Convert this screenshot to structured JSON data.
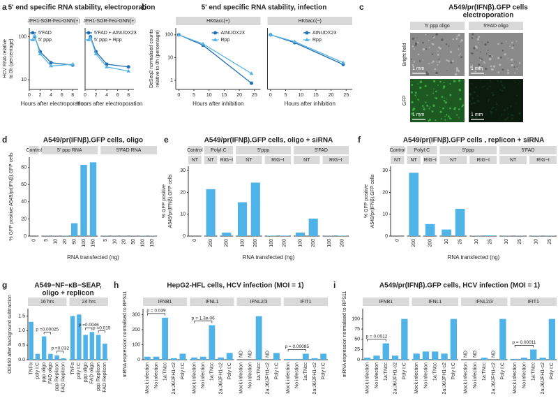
{
  "chart_data": [
    {
      "label": "a",
      "type": "line",
      "title": "5' end specific RNA stability, electroporation",
      "ylabel": [
        "HCV RNA relative",
        "to 0h (percentage)"
      ],
      "xlabel": "Hours after electroporation",
      "log_y": true,
      "ylim": [
        6,
        160
      ],
      "yticks": [
        10,
        100
      ],
      "xlim": [
        0,
        9
      ],
      "xticks": [
        0,
        2,
        4,
        6,
        8
      ],
      "facets": [
        {
          "title": "JFH1-SGR-Feo-GNN(+)",
          "x": [
            1,
            2,
            4,
            8
          ],
          "series": [
            {
              "name": "5'FAD",
              "color": "#1f6fb2",
              "values": [
                100,
                45,
                25,
                22
              ]
            },
            {
              "name": "5' ppp",
              "color": "#5ab4e5",
              "values": [
                105,
                40,
                21,
                23
              ]
            }
          ]
        },
        {
          "title": "JFH1-SGR-Feo-GNN(+)",
          "x": [
            1,
            2,
            4,
            8
          ],
          "series": [
            {
              "name": "5'FAD + AtNUDX23",
              "color": "#1f6fb2",
              "values": [
                100,
                45,
                23,
                20
              ]
            },
            {
              "name": "5' ppp + Rpp",
              "color": "#5ab4e5",
              "values": [
                95,
                40,
                20,
                16
              ]
            }
          ]
        }
      ]
    },
    {
      "label": "b",
      "type": "line",
      "title": "5' end specific RNA stability, infection",
      "ylabel": [
        "DeSeq2 normalised counts",
        "relative to 0h (percentage)"
      ],
      "xlabel": "Hours after inhibition",
      "log_y": true,
      "ylim": [
        0.4,
        200
      ],
      "yticks": [
        1,
        10,
        100
      ],
      "xlim": [
        -1,
        27
      ],
      "xticks": [
        0,
        5,
        10,
        15,
        20,
        25
      ],
      "facets": [
        {
          "title": "HK6acc(+)",
          "x": [
            0,
            8,
            24
          ],
          "series": [
            {
              "name": "AtNUDX23",
              "color": "#1f6fb2",
              "values": [
                100,
                35,
                0.75
              ]
            },
            {
              "name": "Rpp",
              "color": "#5ab4e5",
              "values": [
                100,
                40,
                2
              ]
            }
          ]
        },
        {
          "title": "HK6acc(−)",
          "x": [
            0,
            8,
            24
          ],
          "series": [
            {
              "name": "AtNUDX23",
              "color": "#1f6fb2",
              "values": [
                100,
                45,
                5
              ]
            },
            {
              "name": "Rpp",
              "color": "#5ab4e5",
              "values": [
                100,
                50,
                6
              ]
            }
          ]
        }
      ]
    },
    {
      "label": "d",
      "type": "bar",
      "title": "A549/pr(IFNβ).GFP cells, oligo",
      "ylabel": [
        "% GFP positive A549/pr(IFNβ).GFP cells"
      ],
      "xlabel": "RNA transfected (ng)",
      "color": "#4fb3e8",
      "ylim": [
        0,
        92
      ],
      "yticks": [
        0,
        20,
        40,
        60,
        80
      ],
      "groups": [
        {
          "label": "Control",
          "facets": [
            {
              "categories": [
                "0"
              ],
              "values": [
                0
              ]
            }
          ]
        },
        {
          "label": "5' ppp RNA",
          "facets": [
            {
              "categories": [
                "5",
                "10",
                "20",
                "50",
                "100",
                "150"
              ],
              "values": [
                0.2,
                0.2,
                0.3,
                15,
                83,
                86
              ]
            }
          ]
        },
        {
          "label": "5'FAD RNA",
          "facets": [
            {
              "categories": [
                "5",
                "10",
                "20",
                "50",
                "100",
                "150"
              ],
              "values": [
                0.2,
                0.2,
                0.2,
                0.2,
                0.3,
                0.3
              ]
            }
          ]
        }
      ]
    },
    {
      "label": "e",
      "type": "bar",
      "title": "A549/pr(IFNβ).GFP cells, oligo + siRNA",
      "ylabel": [
        "% GFP positive",
        "A549/pr(IFNβ).GFP cells"
      ],
      "xlabel": "RNA transfected (ng)",
      "color": "#4fb3e8",
      "ylim": [
        0,
        32
      ],
      "yticks": [
        0,
        10,
        20,
        30
      ],
      "groups": [
        {
          "label": "Control",
          "facets": [
            {
              "label": "NT",
              "categories": [
                "0"
              ],
              "values": [
                0
              ]
            }
          ]
        },
        {
          "label": "PolyI:C",
          "facets": [
            {
              "label": "NT",
              "categories": [
                "200"
              ],
              "values": [
                21.5
              ]
            },
            {
              "label": "RIG−I",
              "categories": [
                "200"
              ],
              "values": [
                1.6
              ]
            }
          ]
        },
        {
          "label": "5'ppp",
          "facets": [
            {
              "label": "NT",
              "categories": [
                "100",
                "200"
              ],
              "values": [
                15.5,
                24.5
              ]
            },
            {
              "label": "RIG−I",
              "categories": [
                "100",
                "200"
              ],
              "values": [
                0.2,
                0.2
              ]
            }
          ]
        },
        {
          "label": "5'FAD",
          "facets": [
            {
              "label": "NT",
              "categories": [
                "100",
                "200"
              ],
              "values": [
                1.6,
                8
              ]
            },
            {
              "label": "RIG−I",
              "categories": [
                "100",
                "200"
              ],
              "values": [
                0.1,
                0.2
              ]
            }
          ]
        }
      ]
    },
    {
      "label": "f",
      "type": "bar",
      "title": "A549/pr(IFNβ).GFP cells , replicon + siRNA",
      "ylabel": [
        "% GFP positive",
        "A549/pr(IFNβ).GFP cells"
      ],
      "xlabel": "RNA transfected (ng)",
      "color": "#4fb3e8",
      "ylim": [
        0,
        32
      ],
      "yticks": [
        0,
        10,
        20,
        30
      ],
      "groups": [
        {
          "label": "Control",
          "facets": [
            {
              "label": "NT",
              "categories": [
                "0"
              ],
              "values": [
                0
              ]
            }
          ]
        },
        {
          "label": "PolyI:C",
          "facets": [
            {
              "label": "NT",
              "categories": [
                "200"
              ],
              "values": [
                29
              ]
            },
            {
              "label": "RIG−I",
              "categories": [
                "200"
              ],
              "values": [
                5.5
              ]
            }
          ]
        },
        {
          "label": "5'ppp",
          "facets": [
            {
              "label": "NT",
              "categories": [
                "10",
                "25"
              ],
              "values": [
                3,
                12.5
              ]
            },
            {
              "label": "RIG−I",
              "categories": [
                "10",
                "25"
              ],
              "values": [
                0.1,
                0.3
              ]
            }
          ]
        },
        {
          "label": "5'FAD",
          "facets": [
            {
              "label": "NT",
              "categories": [
                "10",
                "25"
              ],
              "values": [
                0.1,
                0.1
              ]
            },
            {
              "label": "RIG−I",
              "categories": [
                "10",
                "25"
              ],
              "values": [
                0.1,
                0.1
              ]
            }
          ]
        }
      ]
    },
    {
      "label": "g",
      "type": "bar",
      "title": [
        "A549−NF−κB−SEAP,",
        "oligo + replicon"
      ],
      "ylabel": [
        "OD650 after background subtraction"
      ],
      "color": "#4fb3e8",
      "ylim": [
        0,
        1.75
      ],
      "yticks": [
        {
          "value": 0,
          "label": "0.0"
        },
        0.5,
        {
          "value": 1,
          "label": "1.0"
        },
        1.5
      ],
      "groups": [
        {
          "label": "16 hrs",
          "facets": [
            {
              "categories": [
                "TNFα",
                "poly I:C",
                "ppp oligo",
                "FAD oligo",
                "ppp Replicon",
                "FAD Replicon"
              ],
              "values": [
                1.3,
                0.2,
                0.8,
                0.2,
                0.15,
                0.05
              ],
              "brackets": [
                {
                  "label": "p =0.00025",
                  "span": [
                    2,
                    3
                  ]
                },
                {
                  "label": "p =0.032",
                  "span": [
                    4,
                    5
                  ]
                }
              ]
            }
          ]
        },
        {
          "label": "24 hrs",
          "facets": [
            {
              "categories": [
                "TNFα",
                "poly I:C",
                "ppp oligo",
                "FAD oligo",
                "ppp Replicon",
                "FAD Replicon"
              ],
              "values": [
                1.5,
                1.55,
                0.85,
                0.95,
                0.85,
                0.55
              ],
              "brackets": [
                {
                  "label": "p =0.0046",
                  "span": [
                    2,
                    3
                  ]
                },
                {
                  "label": "p =0.015",
                  "span": [
                    4,
                    5
                  ]
                }
              ]
            }
          ]
        }
      ]
    },
    {
      "label": "h",
      "type": "bar",
      "title": "HepG2-HFL cells, HCV infection (MOI = 1)",
      "ylabel": [
        "mRNA expression normalised to RPS11"
      ],
      "color": "#4fb3e8",
      "ylim": [
        0,
        340
      ],
      "yticks": [
        0,
        100,
        200,
        300
      ],
      "groups": [
        {
          "label": "IFNB1",
          "facets": [
            {
              "categories": [
                "Mock infection",
                "No infection",
                "1a:TNcc",
                "2a:J6/JFH1-c2",
                "Poly I:C"
              ],
              "values": [
                20,
                20,
                280,
                10,
                40
              ],
              "brackets": [
                {
                  "label": "p = 0.039",
                  "span": [
                    0,
                    2
                  ]
                }
              ]
            }
          ]
        },
        {
          "label": "IFNL1",
          "facets": [
            {
              "categories": [
                "Mock infection",
                "No infection",
                "1a:TNcc",
                "2a:J6/JFH1-c2",
                "Poly I:C"
              ],
              "values": [
                15,
                20,
                230,
                15,
                45
              ],
              "brackets": [
                {
                  "label": "p = 1.3e-06",
                  "span": [
                    0,
                    2
                  ]
                }
              ]
            }
          ]
        },
        {
          "label": "IFNL2/3",
          "facets": [
            {
              "categories": [
                "Mock infection",
                "No infection",
                "1a:TNcc",
                "2a:J6/JFH1-c2",
                "Poly I:C"
              ],
              "values": [
                null,
                null,
                290,
                null,
                45
              ],
              "value_labels": [
                "ND",
                "ND",
                null,
                "ND",
                null
              ]
            }
          ]
        },
        {
          "label": "IFIT1",
          "facets": [
            {
              "categories": [
                "Mock infection",
                "No infection",
                "1a:TNcc",
                "2a:J6/JFH1-c2",
                "Poly I:C"
              ],
              "values": [
                5,
                5,
                40,
                10,
                40
              ],
              "brackets": [
                {
                  "label": "p = 0.00085",
                  "span": [
                    0,
                    2
                  ]
                }
              ]
            }
          ]
        }
      ]
    },
    {
      "label": "i",
      "type": "bar",
      "title": "A549/pr(IFNβ).GFP cells, HCV infection (MOI = 1)",
      "ylabel": [
        "mRNA expression normalised to RPS11"
      ],
      "color": "#4fb3e8",
      "ylim": [
        0,
        125
      ],
      "yticks": [
        0,
        25,
        50,
        75,
        100
      ],
      "groups": [
        {
          "label": "IFNB1",
          "facets": [
            {
              "categories": [
                "Mock infection",
                "No infection",
                "1a:TNcc",
                "2a:J6/JFH1-c2",
                "Poly I:C"
              ],
              "values": [
                5,
                10,
                40,
                10,
                100
              ],
              "brackets": [
                {
                  "label": "p = 0.0012",
                  "span": [
                    0,
                    2
                  ]
                }
              ]
            }
          ]
        },
        {
          "label": "IFNL1",
          "facets": [
            {
              "categories": [
                "Mock infection",
                "No infection",
                "1a:TNcc",
                "2a:J6/JFH1-c2",
                "Poly I:C"
              ],
              "values": [
                15,
                20,
                20,
                15,
                100
              ]
            }
          ]
        },
        {
          "label": "IFNL2/3",
          "facets": [
            {
              "categories": [
                "Mock infection",
                "No infection",
                "1a:TNcc",
                "2a:J6/JFH1-c2",
                "Poly I:C"
              ],
              "values": [
                null,
                null,
                5,
                null,
                100
              ],
              "value_labels": [
                "ND",
                "ND",
                null,
                "ND",
                null
              ]
            }
          ]
        },
        {
          "label": "IFIT1",
          "facets": [
            {
              "categories": [
                "Mock infection",
                "No infection",
                "1a:TNcc",
                "2a:J6/JFH1-c2",
                "Poly I:C"
              ],
              "values": [
                2,
                5,
                25,
                5,
                100
              ],
              "brackets": [
                {
                  "label": "p = 0.00011",
                  "span": [
                    0,
                    2
                  ]
                }
              ]
            }
          ]
        }
      ]
    }
  ],
  "micrographs": {
    "label": "c",
    "title": [
      "A549/pr(IFNβ).GFP cells",
      "electroporation"
    ],
    "columns": [
      "5' ppp oligo",
      "5'FAD oligo"
    ],
    "rows": [
      "Bright field",
      "GFP"
    ],
    "scale_bar": "1 mm"
  }
}
